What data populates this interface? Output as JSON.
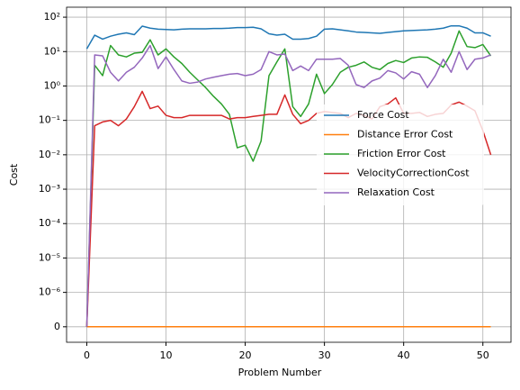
{
  "chart_data": {
    "type": "line",
    "xlabel": "Problem Number",
    "ylabel": "Cost",
    "x": [
      0,
      1,
      2,
      3,
      4,
      5,
      6,
      7,
      8,
      9,
      10,
      11,
      12,
      13,
      14,
      15,
      16,
      17,
      18,
      19,
      20,
      21,
      22,
      23,
      24,
      25,
      26,
      27,
      28,
      29,
      30,
      31,
      32,
      33,
      34,
      35,
      36,
      37,
      38,
      39,
      40,
      41,
      42,
      43,
      44,
      45,
      46,
      47,
      48,
      49,
      50,
      51
    ],
    "series": [
      {
        "name": "Force Cost",
        "color": "#1f77b4",
        "values": [
          12,
          30,
          23,
          28,
          32,
          35,
          31,
          55,
          48,
          45,
          44,
          43,
          45,
          46,
          46,
          46,
          47,
          47,
          48,
          50,
          50,
          51,
          46,
          33,
          30,
          32,
          23,
          23,
          24,
          28,
          45,
          46,
          43,
          40,
          37,
          36,
          35,
          34,
          36,
          38,
          40,
          41,
          42,
          43,
          45,
          48,
          56,
          56,
          48,
          35,
          35,
          28
        ]
      },
      {
        "name": "Distance Error Cost",
        "color": "#ff7f0e",
        "values": [
          0,
          0,
          0,
          0,
          0,
          0,
          0,
          0,
          0,
          0,
          0,
          0,
          0,
          0,
          0,
          0,
          0,
          0,
          0,
          0,
          0,
          0,
          0,
          0,
          0,
          0,
          0,
          0,
          0,
          0,
          0,
          0,
          0,
          0,
          0,
          0,
          0,
          0,
          0,
          0,
          0,
          0,
          0,
          0,
          0,
          0,
          0,
          0,
          0,
          0,
          0,
          0
        ]
      },
      {
        "name": "Friction Error Cost",
        "color": "#2ca02c",
        "values": [
          0,
          4,
          2,
          15,
          8,
          7,
          9,
          9.5,
          22,
          8,
          12,
          7,
          4.5,
          2.5,
          1.5,
          0.9,
          0.5,
          0.3,
          0.15,
          0.016,
          0.019,
          0.0065,
          0.025,
          2,
          5,
          12,
          0.25,
          0.13,
          0.3,
          2.2,
          0.6,
          1.1,
          2.5,
          3.5,
          4,
          5,
          3.5,
          3,
          4.5,
          5.5,
          4.8,
          6.5,
          7,
          6.8,
          5,
          3.5,
          9,
          40,
          14,
          13,
          16,
          7.5
        ]
      },
      {
        "name": "VelocityCorrectionCost",
        "color": "#d62728",
        "values": [
          0,
          0.07,
          0.09,
          0.1,
          0.07,
          0.11,
          0.25,
          0.7,
          0.22,
          0.26,
          0.14,
          0.12,
          0.12,
          0.14,
          0.14,
          0.14,
          0.14,
          0.14,
          0.11,
          0.12,
          0.12,
          0.13,
          0.14,
          0.15,
          0.15,
          0.55,
          0.15,
          0.08,
          0.1,
          0.16,
          0.18,
          0.17,
          0.16,
          0.12,
          0.16,
          0.14,
          0.11,
          0.25,
          0.3,
          0.45,
          0.16,
          0.16,
          0.17,
          0.13,
          0.15,
          0.16,
          0.28,
          0.34,
          0.26,
          0.19,
          0.05,
          0.01
        ]
      },
      {
        "name": "Relaxation Cost",
        "color": "#9467bd",
        "values": [
          0,
          8,
          7.5,
          2.5,
          1.4,
          2.5,
          3.5,
          6.5,
          15,
          3.2,
          7,
          3,
          1.4,
          1.2,
          1.3,
          1.6,
          1.8,
          2,
          2.2,
          2.3,
          2,
          2.2,
          3,
          10,
          8,
          8.5,
          2.8,
          3.8,
          2.8,
          6,
          6,
          6,
          6.3,
          4,
          1.1,
          0.9,
          1.4,
          1.7,
          2.8,
          2.4,
          1.6,
          2.6,
          2.2,
          0.9,
          2,
          6,
          2.5,
          10,
          3,
          6,
          6.5,
          8
        ]
      }
    ],
    "xlim": [
      -2.55,
      53.55
    ],
    "xticks": [
      0,
      10,
      20,
      30,
      40,
      50
    ],
    "yscale": "symlog",
    "linthresh": 1e-06,
    "ylim": [
      -4.5e-07,
      195
    ],
    "yticks": [
      0,
      {
        "value": 1e-06,
        "label": "10⁻⁶"
      },
      {
        "value": 1e-05,
        "label": "10⁻⁵"
      },
      {
        "value": 0.0001,
        "label": "10⁻⁴"
      },
      {
        "value": 0.001,
        "label": "10⁻³"
      },
      {
        "value": 0.01,
        "label": "10⁻²"
      },
      {
        "value": 0.1,
        "label": "10⁻¹"
      },
      {
        "value": 1,
        "label": "10⁰"
      },
      {
        "value": 10,
        "label": "10¹"
      },
      {
        "value": 100,
        "label": "10²"
      }
    ],
    "grid": true,
    "legend": "center right"
  }
}
